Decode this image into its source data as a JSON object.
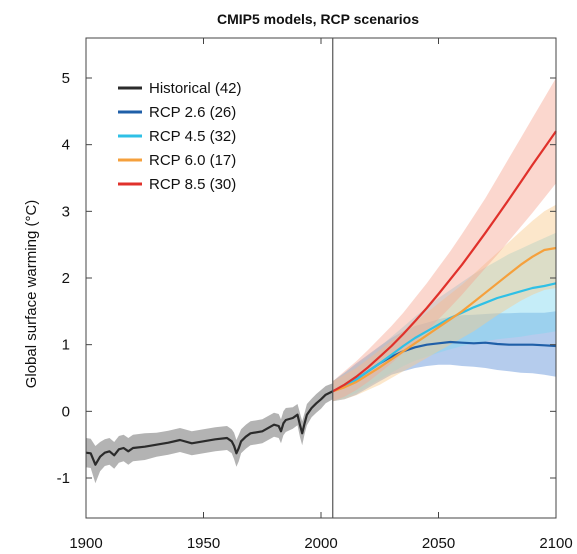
{
  "chart_data": {
    "type": "line",
    "title": "CMIP5 models, RCP scenarios",
    "xlabel": "",
    "ylabel": "Global surface warming (°C)",
    "xlim": [
      1900,
      2100
    ],
    "ylim": [
      -1.6,
      5.6
    ],
    "x_ticks": [
      1900,
      1950,
      2000,
      2050,
      2100
    ],
    "y_ticks": [
      -1,
      0,
      1,
      2,
      3,
      4,
      5
    ],
    "vline_x": 2005,
    "grid": false,
    "legend_position": "top-left",
    "series": [
      {
        "name": "Historical (42)",
        "color": "#2b2b2b",
        "band_color": "#9a9a9a",
        "x": [
          1900,
          1902,
          1904,
          1906,
          1908,
          1910,
          1912,
          1914,
          1916,
          1918,
          1920,
          1925,
          1930,
          1935,
          1940,
          1945,
          1950,
          1955,
          1960,
          1962,
          1963,
          1964,
          1965,
          1966,
          1968,
          1970,
          1975,
          1980,
          1982,
          1983,
          1984,
          1985,
          1988,
          1990,
          1991,
          1992,
          1993,
          1994,
          1996,
          1998,
          2000,
          2002,
          2005
        ],
        "values": [
          -0.62,
          -0.63,
          -0.8,
          -0.68,
          -0.62,
          -0.6,
          -0.66,
          -0.57,
          -0.55,
          -0.6,
          -0.55,
          -0.53,
          -0.5,
          -0.47,
          -0.43,
          -0.48,
          -0.45,
          -0.42,
          -0.4,
          -0.45,
          -0.52,
          -0.63,
          -0.55,
          -0.45,
          -0.38,
          -0.33,
          -0.3,
          -0.2,
          -0.22,
          -0.3,
          -0.18,
          -0.13,
          -0.1,
          -0.05,
          -0.2,
          -0.33,
          -0.18,
          -0.05,
          0.05,
          0.12,
          0.18,
          0.25,
          0.3
        ],
        "band_half_width": [
          0.22,
          0.22,
          0.28,
          0.22,
          0.2,
          0.2,
          0.2,
          0.2,
          0.2,
          0.2,
          0.2,
          0.2,
          0.18,
          0.18,
          0.18,
          0.18,
          0.18,
          0.18,
          0.18,
          0.18,
          0.2,
          0.2,
          0.2,
          0.18,
          0.18,
          0.18,
          0.18,
          0.18,
          0.18,
          0.18,
          0.18,
          0.18,
          0.16,
          0.16,
          0.18,
          0.18,
          0.16,
          0.16,
          0.14,
          0.14,
          0.14,
          0.13,
          0.12
        ]
      },
      {
        "name": "RCP 2.6 (26)",
        "color": "#1f5fa8",
        "band_color": "#5a8fd6",
        "x": [
          2005,
          2010,
          2015,
          2020,
          2025,
          2030,
          2035,
          2040,
          2045,
          2050,
          2055,
          2060,
          2065,
          2070,
          2075,
          2080,
          2085,
          2090,
          2095,
          2100
        ],
        "values": [
          0.3,
          0.38,
          0.48,
          0.6,
          0.72,
          0.82,
          0.9,
          0.96,
          1.0,
          1.02,
          1.04,
          1.03,
          1.02,
          1.03,
          1.01,
          1.0,
          1.0,
          1.0,
          0.99,
          0.98
        ],
        "band_low": [
          0.15,
          0.18,
          0.25,
          0.35,
          0.45,
          0.55,
          0.6,
          0.65,
          0.68,
          0.7,
          0.7,
          0.68,
          0.67,
          0.65,
          0.62,
          0.6,
          0.58,
          0.57,
          0.55,
          0.52
        ],
        "band_high": [
          0.45,
          0.58,
          0.72,
          0.85,
          0.98,
          1.1,
          1.2,
          1.28,
          1.33,
          1.38,
          1.42,
          1.44,
          1.45,
          1.46,
          1.47,
          1.47,
          1.48,
          1.48,
          1.48,
          1.5
        ]
      },
      {
        "name": "RCP 4.5 (32)",
        "color": "#2fc0e6",
        "band_color": "#7fd8f0",
        "x": [
          2005,
          2010,
          2015,
          2020,
          2025,
          2030,
          2035,
          2040,
          2045,
          2050,
          2055,
          2060,
          2065,
          2070,
          2075,
          2080,
          2085,
          2090,
          2095,
          2100
        ],
        "values": [
          0.3,
          0.38,
          0.48,
          0.6,
          0.72,
          0.85,
          0.98,
          1.1,
          1.2,
          1.3,
          1.4,
          1.48,
          1.56,
          1.63,
          1.7,
          1.75,
          1.8,
          1.85,
          1.88,
          1.92
        ],
        "band_low": [
          0.15,
          0.2,
          0.28,
          0.38,
          0.48,
          0.58,
          0.68,
          0.76,
          0.82,
          0.88,
          0.93,
          0.98,
          1.02,
          1.05,
          1.08,
          1.1,
          1.12,
          1.15,
          1.17,
          1.2
        ],
        "band_high": [
          0.45,
          0.58,
          0.7,
          0.83,
          0.97,
          1.12,
          1.27,
          1.42,
          1.56,
          1.7,
          1.82,
          1.94,
          2.06,
          2.16,
          2.26,
          2.36,
          2.44,
          2.52,
          2.6,
          2.68
        ]
      },
      {
        "name": "RCP 6.0 (17)",
        "color": "#f5a03c",
        "band_color": "#f8c98c",
        "x": [
          2005,
          2010,
          2015,
          2020,
          2025,
          2030,
          2035,
          2040,
          2045,
          2050,
          2055,
          2060,
          2065,
          2070,
          2075,
          2080,
          2085,
          2090,
          2095,
          2100
        ],
        "values": [
          0.3,
          0.36,
          0.44,
          0.55,
          0.66,
          0.78,
          0.9,
          1.02,
          1.14,
          1.26,
          1.38,
          1.5,
          1.64,
          1.78,
          1.92,
          2.06,
          2.2,
          2.32,
          2.42,
          2.45
        ],
        "band_low": [
          0.15,
          0.18,
          0.24,
          0.32,
          0.4,
          0.5,
          0.6,
          0.7,
          0.8,
          0.9,
          1.0,
          1.1,
          1.2,
          1.32,
          1.44,
          1.55,
          1.66,
          1.75,
          1.82,
          1.85
        ],
        "band_high": [
          0.45,
          0.55,
          0.65,
          0.78,
          0.92,
          1.06,
          1.2,
          1.34,
          1.48,
          1.62,
          1.76,
          1.9,
          2.06,
          2.22,
          2.38,
          2.54,
          2.7,
          2.86,
          3.0,
          3.1
        ]
      },
      {
        "name": "RCP 8.5 (30)",
        "color": "#e0312b",
        "band_color": "#f7a793",
        "x": [
          2005,
          2010,
          2015,
          2020,
          2025,
          2030,
          2035,
          2040,
          2045,
          2050,
          2055,
          2060,
          2065,
          2070,
          2075,
          2080,
          2085,
          2090,
          2095,
          2100
        ],
        "values": [
          0.3,
          0.4,
          0.52,
          0.66,
          0.82,
          0.98,
          1.16,
          1.35,
          1.55,
          1.76,
          1.98,
          2.2,
          2.44,
          2.68,
          2.93,
          3.18,
          3.44,
          3.7,
          3.95,
          4.2
        ],
        "band_low": [
          0.15,
          0.22,
          0.32,
          0.44,
          0.58,
          0.72,
          0.88,
          1.04,
          1.2,
          1.38,
          1.56,
          1.75,
          1.95,
          2.15,
          2.35,
          2.56,
          2.77,
          2.98,
          3.2,
          3.42
        ],
        "band_high": [
          0.45,
          0.6,
          0.75,
          0.92,
          1.1,
          1.28,
          1.48,
          1.7,
          1.92,
          2.16,
          2.4,
          2.66,
          2.93,
          3.2,
          3.5,
          3.8,
          4.1,
          4.4,
          4.7,
          5.0
        ]
      }
    ]
  }
}
